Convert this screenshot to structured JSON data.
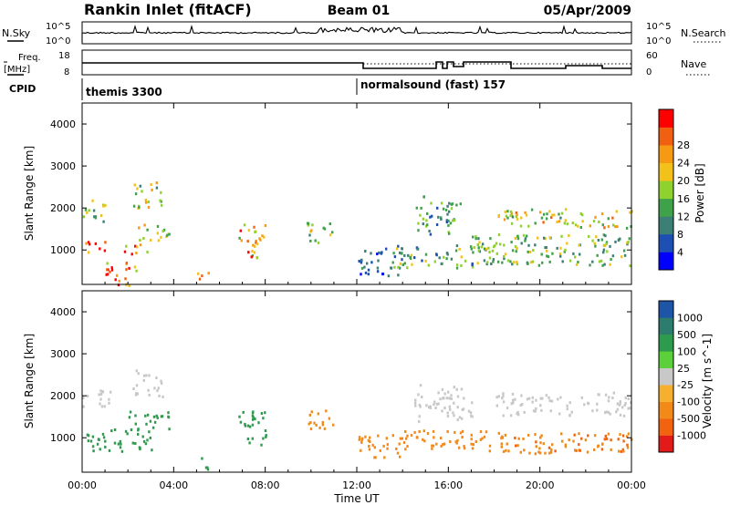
{
  "header": {
    "station": "Rankin Inlet (fitACF)",
    "beam": "Beam 01",
    "date": "05/Apr/2009"
  },
  "noise_panel": {
    "left_label": "N.Sky",
    "right_label": "N.Search",
    "y_ticks": [
      "10^5",
      "10^0"
    ],
    "right_ticks": [
      "10^5",
      "10^0"
    ]
  },
  "freq_panel": {
    "left_label_1": "Freq.",
    "left_label_2": "[MHz]",
    "right_label": "Nave",
    "left_ticks": [
      "18",
      "8"
    ],
    "right_ticks": [
      "60",
      "0"
    ]
  },
  "cpid": {
    "label": "CPID",
    "segments": [
      {
        "name": "themis 3300",
        "start_hour": 0
      },
      {
        "name": "normalsound (fast) 157",
        "start_hour": 12
      }
    ]
  },
  "time_axis": {
    "ticks": [
      "00:00",
      "04:00",
      "08:00",
      "12:00",
      "16:00",
      "20:00",
      "00:00"
    ],
    "label": "Time UT"
  },
  "colors": {
    "power_scale": [
      "#0000ff",
      "#1e4fb3",
      "#3b7f76",
      "#3fa24a",
      "#8fd22e",
      "#f2c21a",
      "#f59a12",
      "#f06010",
      "#ff0000"
    ],
    "velocity_scale": [
      "#e21a1a",
      "#f2620f",
      "#f28a1a",
      "#f5b030",
      "#c8c8c8",
      "#5bd03a",
      "#2e9a4d",
      "#2d7d6e",
      "#1d55a7"
    ]
  },
  "chart_data": [
    {
      "type": "heatmap",
      "title": "Power",
      "xlabel": "Time UT",
      "ylabel": "Slant Range [km]",
      "xlim_hours": [
        0,
        24
      ],
      "ylim": [
        180,
        4500
      ],
      "y_ticks": [
        "1000",
        "2000",
        "3000",
        "4000"
      ],
      "colorbar": {
        "label": "Power [dB]",
        "ticks": [
          "4",
          "8",
          "12",
          "16",
          "20",
          "24",
          "28"
        ],
        "range": [
          0,
          30
        ]
      },
      "scatter_regions": [
        {
          "t0": 0.0,
          "t1": 1.0,
          "r0": 950,
          "r1": 1250,
          "value": 26
        },
        {
          "t0": 0.0,
          "t1": 1.0,
          "r0": 1700,
          "r1": 2250,
          "value": 14
        },
        {
          "t0": 1.0,
          "t1": 2.5,
          "r0": 300,
          "r1": 750,
          "value": 24
        },
        {
          "t0": 1.5,
          "t1": 2.2,
          "r0": 180,
          "r1": 420,
          "value": 28
        },
        {
          "t0": 1.8,
          "t1": 2.9,
          "r0": 900,
          "r1": 1200,
          "value": 22
        },
        {
          "t0": 2.2,
          "t1": 3.8,
          "r0": 1250,
          "r1": 1650,
          "value": 16
        },
        {
          "t0": 2.2,
          "t1": 3.5,
          "r0": 2000,
          "r1": 2650,
          "value": 15
        },
        {
          "t0": 5.0,
          "t1": 5.5,
          "r0": 200,
          "r1": 550,
          "value": 22
        },
        {
          "t0": 6.8,
          "t1": 8.0,
          "r0": 800,
          "r1": 1650,
          "value": 20
        },
        {
          "t0": 9.8,
          "t1": 11.0,
          "r0": 1200,
          "r1": 1700,
          "value": 14
        },
        {
          "t0": 12.0,
          "t1": 14.0,
          "r0": 400,
          "r1": 1100,
          "value": 6
        },
        {
          "t0": 13.5,
          "t1": 18.0,
          "r0": 600,
          "r1": 1150,
          "value": 12
        },
        {
          "t0": 14.5,
          "t1": 16.5,
          "r0": 1400,
          "r1": 2300,
          "value": 10
        },
        {
          "t0": 17.0,
          "t1": 24.0,
          "r0": 650,
          "r1": 1400,
          "value": 13
        },
        {
          "t0": 18.0,
          "t1": 24.0,
          "r0": 1550,
          "r1": 2000,
          "value": 17
        }
      ]
    },
    {
      "type": "heatmap",
      "title": "Velocity",
      "xlabel": "Time UT",
      "ylabel": "Slant Range [km]",
      "xlim_hours": [
        0,
        24
      ],
      "ylim": [
        180,
        4500
      ],
      "y_ticks": [
        "1000",
        "2000",
        "3000",
        "4000"
      ],
      "colorbar": {
        "label": "Velocity [m s^-1]",
        "ticks": [
          "1000",
          "500",
          "100",
          "25",
          "-25",
          "-100",
          "-500",
          "-1000"
        ]
      },
      "scatter_regions": [
        {
          "t0": 0.0,
          "t1": 1.2,
          "r0": 1750,
          "r1": 2250,
          "value": 0
        },
        {
          "t0": 0.0,
          "t1": 3.0,
          "r0": 700,
          "r1": 1250,
          "value": 300
        },
        {
          "t0": 2.0,
          "t1": 3.8,
          "r0": 1200,
          "r1": 1650,
          "value": 200
        },
        {
          "t0": 2.2,
          "t1": 3.5,
          "r0": 2000,
          "r1": 2650,
          "value": 0
        },
        {
          "t0": 5.0,
          "t1": 5.5,
          "r0": 200,
          "r1": 550,
          "value": 150
        },
        {
          "t0": 6.8,
          "t1": 8.0,
          "r0": 800,
          "r1": 1650,
          "value": 250
        },
        {
          "t0": 9.8,
          "t1": 11.0,
          "r0": 1200,
          "r1": 1700,
          "value": -150
        },
        {
          "t0": 12.0,
          "t1": 14.0,
          "r0": 500,
          "r1": 1100,
          "value": -200
        },
        {
          "t0": 14.0,
          "t1": 18.5,
          "r0": 700,
          "r1": 1200,
          "value": -400
        },
        {
          "t0": 14.5,
          "t1": 17.0,
          "r0": 1400,
          "r1": 2300,
          "value": 0
        },
        {
          "t0": 18.0,
          "t1": 24.0,
          "r0": 1550,
          "r1": 2100,
          "value": 0
        },
        {
          "t0": 18.0,
          "t1": 24.0,
          "r0": 650,
          "r1": 1150,
          "value": -450
        }
      ]
    }
  ]
}
